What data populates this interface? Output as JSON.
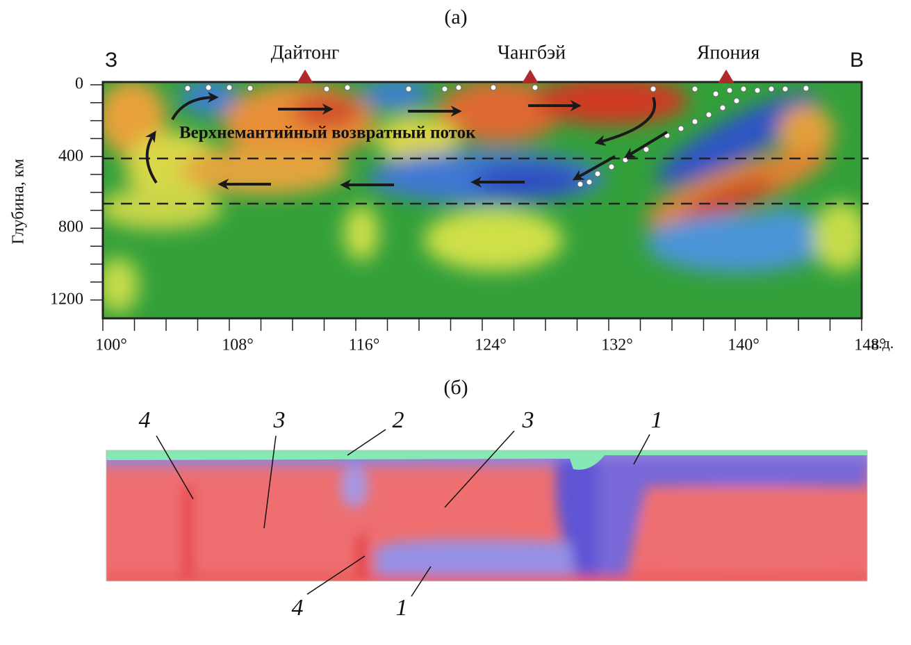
{
  "panel_a": {
    "label": "(а)",
    "west": "З",
    "east": "В",
    "places": [
      "Дайтонг",
      "Чангбэй",
      "Япония"
    ],
    "y_axis_label": "Глубина, км",
    "y_ticks": [
      "0",
      "400",
      "800",
      "1200"
    ],
    "x_ticks": [
      "100°",
      "108°",
      "116°",
      "124°",
      "132°",
      "140°",
      "148°"
    ],
    "x_unit": "в.д.",
    "annotation": "Верхнемантийный возвратный поток"
  },
  "panel_b": {
    "label": "(б)",
    "callouts": [
      "4",
      "3",
      "2",
      "3",
      "1",
      "4",
      "1"
    ]
  }
}
